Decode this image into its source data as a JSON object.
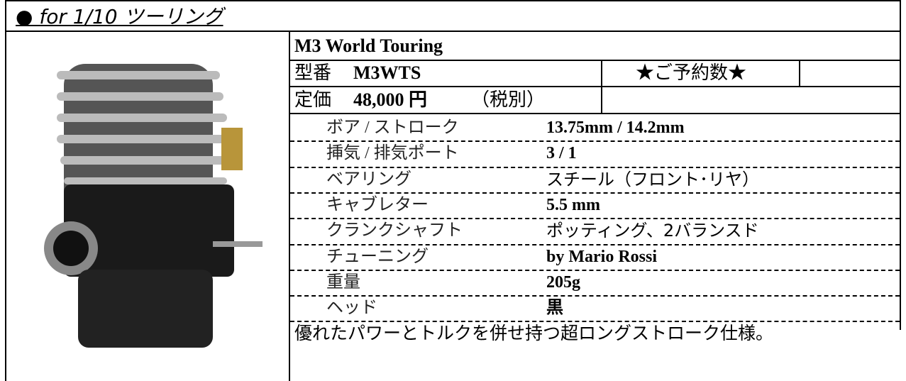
{
  "header": {
    "title": "● for 1/10 ツーリング"
  },
  "product": {
    "name": "M3 World Touring",
    "model_label": "型番",
    "model": "M3WTS",
    "reservation": "★ご予約数★",
    "price_label": "定価",
    "price": "48,000 円",
    "tax_note": "（税別）",
    "specs": [
      {
        "label": "ボア / ストローク",
        "value": "13.75mm / 14.2mm"
      },
      {
        "label": "挿気 / 排気ポート",
        "value": "3 / 1"
      },
      {
        "label": "ベアリング",
        "value": "スチール（フロント･リヤ）"
      },
      {
        "label": "キャブレター",
        "value": "5.5 mm"
      },
      {
        "label": "クランクシャフト",
        "value": "ポッティング、2バランスド"
      },
      {
        "label": "チューニング",
        "value": "by Mario Rossi"
      },
      {
        "label": "重量",
        "value": "205g"
      },
      {
        "label": "ヘッド",
        "value": "黒"
      }
    ],
    "description": "優れたパワーとトルクを併せ持つ超ロングストローク仕様。"
  }
}
